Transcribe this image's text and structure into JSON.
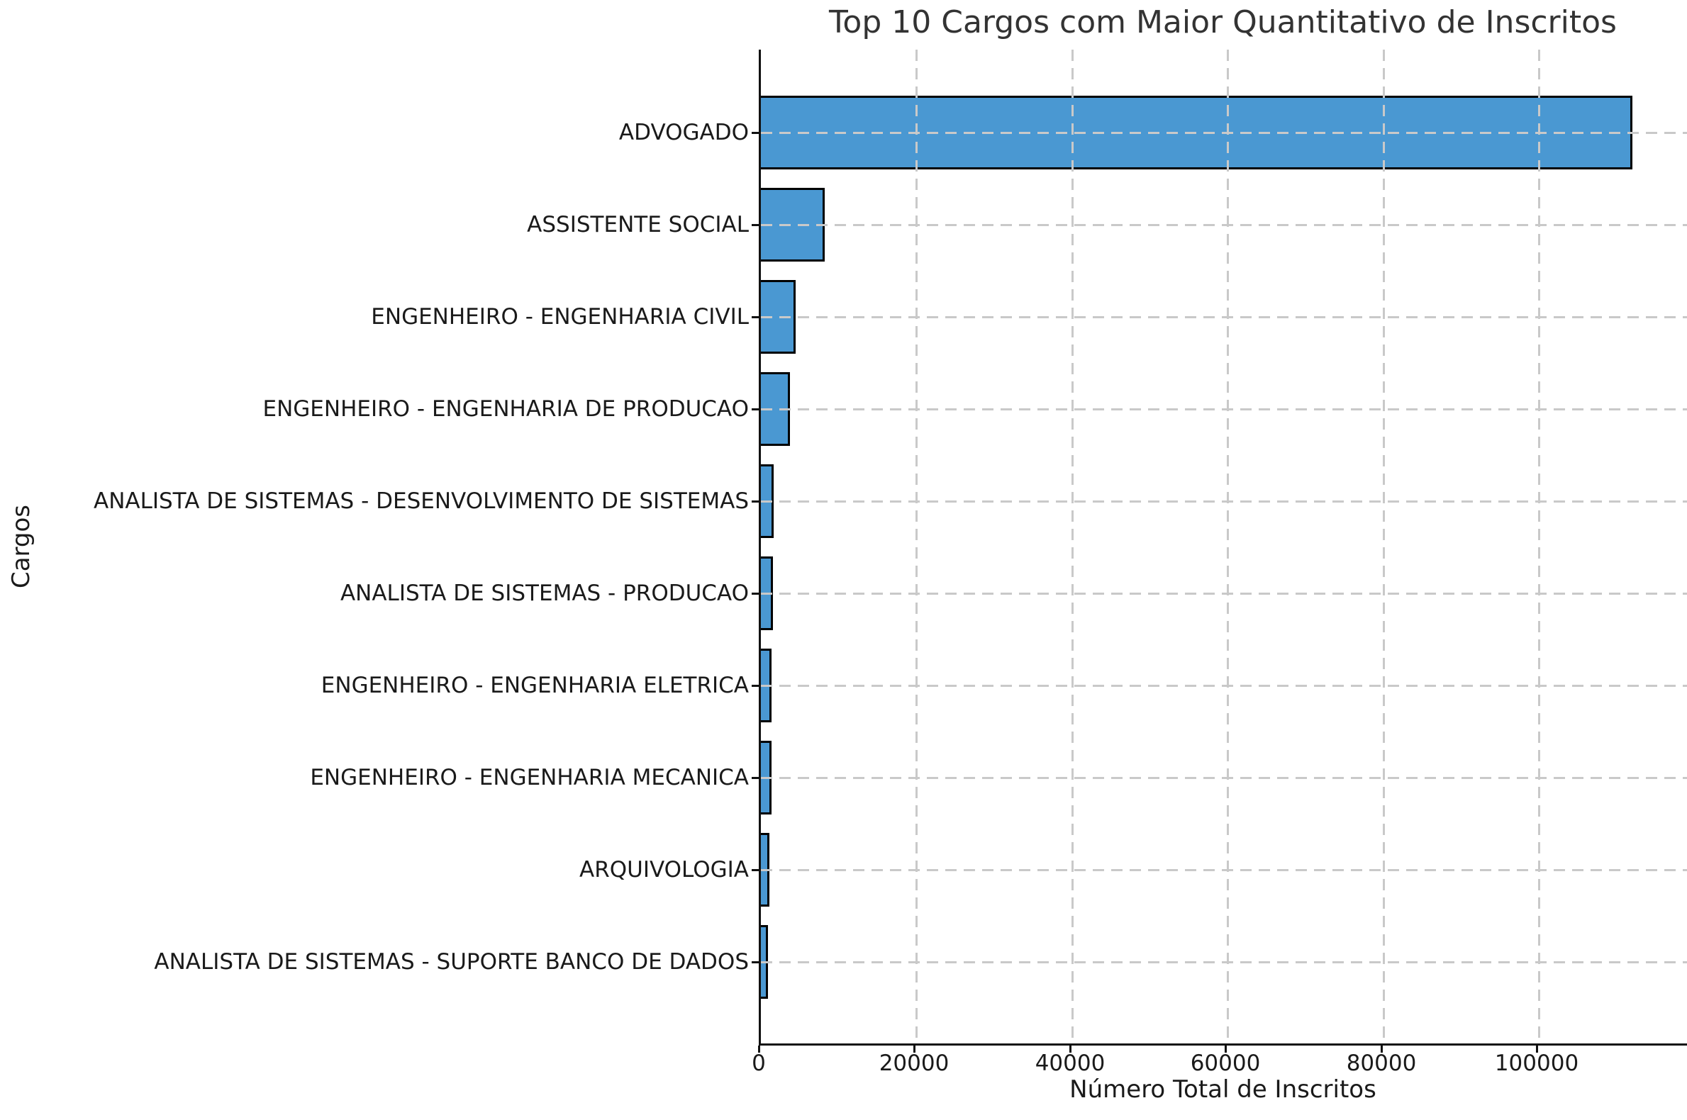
{
  "chart_data": {
    "type": "bar",
    "orientation": "horizontal",
    "title": "Top 10 Cargos com Maior Quantitativo de Inscritos",
    "xlabel": "Número Total de Inscritos",
    "ylabel": "Cargos",
    "categories": [
      "ADVOGADO",
      "ASSISTENTE SOCIAL",
      "ENGENHEIRO - ENGENHARIA CIVIL",
      "ENGENHEIRO - ENGENHARIA DE PRODUCAO",
      "ANALISTA DE SISTEMAS - DESENVOLVIMENTO DE SISTEMAS",
      "ANALISTA DE SISTEMAS - PRODUCAO",
      "ENGENHEIRO - ENGENHARIA ELETRICA",
      "ENGENHEIRO - ENGENHARIA MECANICA",
      "ARQUIVOLOGIA",
      "ANALISTA DE SISTEMAS - SUPORTE BANCO DE DADOS"
    ],
    "values": [
      112000,
      8200,
      4500,
      3700,
      1650,
      1550,
      1400,
      1350,
      1100,
      900
    ],
    "x_ticks": [
      "0",
      "20000",
      "40000",
      "60000",
      "80000",
      "100000"
    ],
    "x_tick_values": [
      0,
      20000,
      40000,
      60000,
      80000,
      100000
    ],
    "xlim": [
      0,
      119300
    ],
    "grid": true,
    "grid_style": "dashed",
    "grid_position": "above-bars",
    "legend": false,
    "bar_color": "#4a98d2",
    "bar_edge_color": "#000000",
    "grid_color": "#c9c9c9"
  }
}
